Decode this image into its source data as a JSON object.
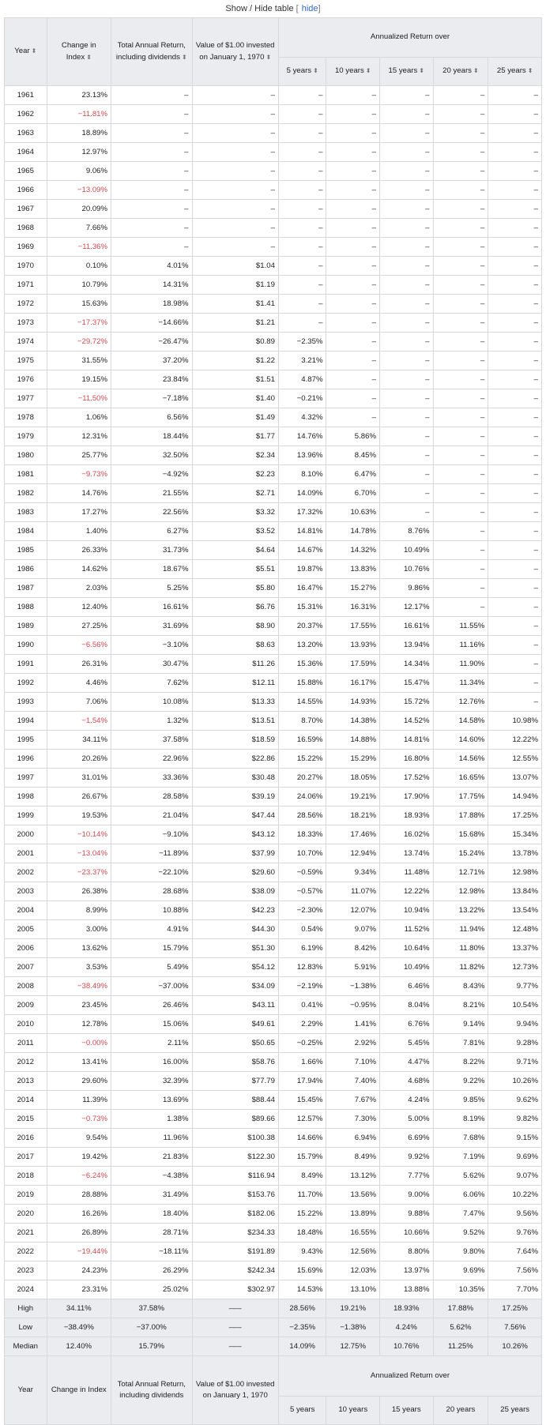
{
  "caption": {
    "title": "Show / Hide table",
    "hide_label": "hide"
  },
  "header": {
    "year": "Year",
    "change": "Change in Index",
    "total": "Total Annual Return, including dividends",
    "value": "Value of $1.00 invested on January 1, 1970",
    "annualized": "Annualized Return over",
    "periods": [
      "5 years",
      "10 years",
      "15 years",
      "20 years",
      "25 years"
    ]
  },
  "rows": [
    [
      "1961",
      "23.13%",
      "–",
      "–",
      "–",
      "–",
      "–",
      "–",
      "–"
    ],
    [
      "1962",
      "−11.81%",
      "–",
      "–",
      "–",
      "–",
      "–",
      "–",
      "–"
    ],
    [
      "1963",
      "18.89%",
      "–",
      "–",
      "–",
      "–",
      "–",
      "–",
      "–"
    ],
    [
      "1964",
      "12.97%",
      "–",
      "–",
      "–",
      "–",
      "–",
      "–",
      "–"
    ],
    [
      "1965",
      "9.06%",
      "–",
      "–",
      "–",
      "–",
      "–",
      "–",
      "–"
    ],
    [
      "1966",
      "−13.09%",
      "–",
      "–",
      "–",
      "–",
      "–",
      "–",
      "–"
    ],
    [
      "1967",
      "20.09%",
      "–",
      "–",
      "–",
      "–",
      "–",
      "–",
      "–"
    ],
    [
      "1968",
      "7.66%",
      "–",
      "–",
      "–",
      "–",
      "–",
      "–",
      "–"
    ],
    [
      "1969",
      "−11.36%",
      "–",
      "–",
      "–",
      "–",
      "–",
      "–",
      "–"
    ],
    [
      "1970",
      "0.10%",
      "4.01%",
      "$1.04",
      "–",
      "–",
      "–",
      "–",
      "–"
    ],
    [
      "1971",
      "10.79%",
      "14.31%",
      "$1.19",
      "–",
      "–",
      "–",
      "–",
      "–"
    ],
    [
      "1972",
      "15.63%",
      "18.98%",
      "$1.41",
      "–",
      "–",
      "–",
      "–",
      "–"
    ],
    [
      "1973",
      "−17.37%",
      "−14.66%",
      "$1.21",
      "–",
      "–",
      "–",
      "–",
      "–"
    ],
    [
      "1974",
      "−29.72%",
      "−26.47%",
      "$0.89",
      "−2.35%",
      "–",
      "–",
      "–",
      "–"
    ],
    [
      "1975",
      "31.55%",
      "37.20%",
      "$1.22",
      "3.21%",
      "–",
      "–",
      "–",
      "–"
    ],
    [
      "1976",
      "19.15%",
      "23.84%",
      "$1.51",
      "4.87%",
      "–",
      "–",
      "–",
      "–"
    ],
    [
      "1977",
      "−11.50%",
      "−7.18%",
      "$1.40",
      "−0.21%",
      "–",
      "–",
      "–",
      "–"
    ],
    [
      "1978",
      "1.06%",
      "6.56%",
      "$1.49",
      "4.32%",
      "–",
      "–",
      "–",
      "–"
    ],
    [
      "1979",
      "12.31%",
      "18.44%",
      "$1.77",
      "14.76%",
      "5.86%",
      "–",
      "–",
      "–"
    ],
    [
      "1980",
      "25.77%",
      "32.50%",
      "$2.34",
      "13.96%",
      "8.45%",
      "–",
      "–",
      "–"
    ],
    [
      "1981",
      "−9.73%",
      "−4.92%",
      "$2.23",
      "8.10%",
      "6.47%",
      "–",
      "–",
      "–"
    ],
    [
      "1982",
      "14.76%",
      "21.55%",
      "$2.71",
      "14.09%",
      "6.70%",
      "–",
      "–",
      "–"
    ],
    [
      "1983",
      "17.27%",
      "22.56%",
      "$3.32",
      "17.32%",
      "10.63%",
      "–",
      "–",
      "–"
    ],
    [
      "1984",
      "1.40%",
      "6.27%",
      "$3.52",
      "14.81%",
      "14.78%",
      "8.76%",
      "–",
      "–"
    ],
    [
      "1985",
      "26.33%",
      "31.73%",
      "$4.64",
      "14.67%",
      "14.32%",
      "10.49%",
      "–",
      "–"
    ],
    [
      "1986",
      "14.62%",
      "18.67%",
      "$5.51",
      "19.87%",
      "13.83%",
      "10.76%",
      "–",
      "–"
    ],
    [
      "1987",
      "2.03%",
      "5.25%",
      "$5.80",
      "16.47%",
      "15.27%",
      "9.86%",
      "–",
      "–"
    ],
    [
      "1988",
      "12.40%",
      "16.61%",
      "$6.76",
      "15.31%",
      "16.31%",
      "12.17%",
      "–",
      "–"
    ],
    [
      "1989",
      "27.25%",
      "31.69%",
      "$8.90",
      "20.37%",
      "17.55%",
      "16.61%",
      "11.55%",
      "–"
    ],
    [
      "1990",
      "−6.56%",
      "−3.10%",
      "$8.63",
      "13.20%",
      "13.93%",
      "13.94%",
      "11.16%",
      "–"
    ],
    [
      "1991",
      "26.31%",
      "30.47%",
      "$11.26",
      "15.36%",
      "17.59%",
      "14.34%",
      "11.90%",
      "–"
    ],
    [
      "1992",
      "4.46%",
      "7.62%",
      "$12.11",
      "15.88%",
      "16.17%",
      "15.47%",
      "11.34%",
      "–"
    ],
    [
      "1993",
      "7.06%",
      "10.08%",
      "$13.33",
      "14.55%",
      "14.93%",
      "15.72%",
      "12.76%",
      "–"
    ],
    [
      "1994",
      "−1.54%",
      "1.32%",
      "$13.51",
      "8.70%",
      "14.38%",
      "14.52%",
      "14.58%",
      "10.98%"
    ],
    [
      "1995",
      "34.11%",
      "37.58%",
      "$18.59",
      "16.59%",
      "14.88%",
      "14.81%",
      "14.60%",
      "12.22%"
    ],
    [
      "1996",
      "20.26%",
      "22.96%",
      "$22.86",
      "15.22%",
      "15.29%",
      "16.80%",
      "14.56%",
      "12.55%"
    ],
    [
      "1997",
      "31.01%",
      "33.36%",
      "$30.48",
      "20.27%",
      "18.05%",
      "17.52%",
      "16.65%",
      "13.07%"
    ],
    [
      "1998",
      "26.67%",
      "28.58%",
      "$39.19",
      "24.06%",
      "19.21%",
      "17.90%",
      "17.75%",
      "14.94%"
    ],
    [
      "1999",
      "19.53%",
      "21.04%",
      "$47.44",
      "28.56%",
      "18.21%",
      "18.93%",
      "17.88%",
      "17.25%"
    ],
    [
      "2000",
      "−10.14%",
      "−9.10%",
      "$43.12",
      "18.33%",
      "17.46%",
      "16.02%",
      "15.68%",
      "15.34%"
    ],
    [
      "2001",
      "−13.04%",
      "−11.89%",
      "$37.99",
      "10.70%",
      "12.94%",
      "13.74%",
      "15.24%",
      "13.78%"
    ],
    [
      "2002",
      "−23.37%",
      "−22.10%",
      "$29.60",
      "−0.59%",
      "9.34%",
      "11.48%",
      "12.71%",
      "12.98%"
    ],
    [
      "2003",
      "26.38%",
      "28.68%",
      "$38.09",
      "−0.57%",
      "11.07%",
      "12.22%",
      "12.98%",
      "13.84%"
    ],
    [
      "2004",
      "8.99%",
      "10.88%",
      "$42.23",
      "−2.30%",
      "12.07%",
      "10.94%",
      "13.22%",
      "13.54%"
    ],
    [
      "2005",
      "3.00%",
      "4.91%",
      "$44.30",
      "0.54%",
      "9.07%",
      "11.52%",
      "11.94%",
      "12.48%"
    ],
    [
      "2006",
      "13.62%",
      "15.79%",
      "$51.30",
      "6.19%",
      "8.42%",
      "10.64%",
      "11.80%",
      "13.37%"
    ],
    [
      "2007",
      "3.53%",
      "5.49%",
      "$54.12",
      "12.83%",
      "5.91%",
      "10.49%",
      "11.82%",
      "12.73%"
    ],
    [
      "2008",
      "−38.49%",
      "−37.00%",
      "$34.09",
      "−2.19%",
      "−1.38%",
      "6.46%",
      "8.43%",
      "9.77%"
    ],
    [
      "2009",
      "23.45%",
      "26.46%",
      "$43.11",
      "0.41%",
      "−0.95%",
      "8.04%",
      "8.21%",
      "10.54%"
    ],
    [
      "2010",
      "12.78%",
      "15.06%",
      "$49.61",
      "2.29%",
      "1.41%",
      "6.76%",
      "9.14%",
      "9.94%"
    ],
    [
      "2011",
      "−0.00%",
      "2.11%",
      "$50.65",
      "−0.25%",
      "2.92%",
      "5.45%",
      "7.81%",
      "9.28%"
    ],
    [
      "2012",
      "13.41%",
      "16.00%",
      "$58.76",
      "1.66%",
      "7.10%",
      "4.47%",
      "8.22%",
      "9.71%"
    ],
    [
      "2013",
      "29.60%",
      "32.39%",
      "$77.79",
      "17.94%",
      "7.40%",
      "4.68%",
      "9.22%",
      "10.26%"
    ],
    [
      "2014",
      "11.39%",
      "13.69%",
      "$88.44",
      "15.45%",
      "7.67%",
      "4.24%",
      "9.85%",
      "9.62%"
    ],
    [
      "2015",
      "−0.73%",
      "1.38%",
      "$89.66",
      "12.57%",
      "7.30%",
      "5.00%",
      "8.19%",
      "9.82%"
    ],
    [
      "2016",
      "9.54%",
      "11.96%",
      "$100.38",
      "14.66%",
      "6.94%",
      "6.69%",
      "7.68%",
      "9.15%"
    ],
    [
      "2017",
      "19.42%",
      "21.83%",
      "$122.30",
      "15.79%",
      "8.49%",
      "9.92%",
      "7.19%",
      "9.69%"
    ],
    [
      "2018",
      "−6.24%",
      "−4.38%",
      "$116.94",
      "8.49%",
      "13.12%",
      "7.77%",
      "5.62%",
      "9.07%"
    ],
    [
      "2019",
      "28.88%",
      "31.49%",
      "$153.76",
      "11.70%",
      "13.56%",
      "9.00%",
      "6.06%",
      "10.22%"
    ],
    [
      "2020",
      "16.26%",
      "18.40%",
      "$182.06",
      "15.22%",
      "13.89%",
      "9.88%",
      "7.47%",
      "9.56%"
    ],
    [
      "2021",
      "26.89%",
      "28.71%",
      "$234.33",
      "18.48%",
      "16.55%",
      "10.66%",
      "9.52%",
      "9.76%"
    ],
    [
      "2022",
      "−19.44%",
      "−18.11%",
      "$191.89",
      "9.43%",
      "12.56%",
      "8.80%",
      "9.80%",
      "7.64%"
    ],
    [
      "2023",
      "24.23%",
      "26.29%",
      "$242.34",
      "15.69%",
      "12.03%",
      "13.97%",
      "9.69%",
      "7.56%"
    ],
    [
      "2024",
      "23.31%",
      "25.02%",
      "$302.97",
      "14.53%",
      "13.10%",
      "13.88%",
      "10.35%",
      "7.70%"
    ]
  ],
  "stats": [
    [
      "High",
      "34.11%",
      "37.58%",
      "–––",
      "28.56%",
      "19.21%",
      "18.93%",
      "17.88%",
      "17.25%"
    ],
    [
      "Low",
      "−38.49%",
      "−37.00%",
      "–––",
      "−2.35%",
      "−1.38%",
      "4.24%",
      "5.62%",
      "7.56%"
    ],
    [
      "Median",
      "12.40%",
      "15.79%",
      "–––",
      "14.09%",
      "12.75%",
      "10.76%",
      "11.25%",
      "10.26%"
    ]
  ],
  "colors": {
    "negative": "#d8474f",
    "header_bg": "#eaecf0",
    "border": "#d6d8db",
    "link": "#3366cc"
  },
  "icons": {
    "sort": "sort-arrows-icon"
  }
}
